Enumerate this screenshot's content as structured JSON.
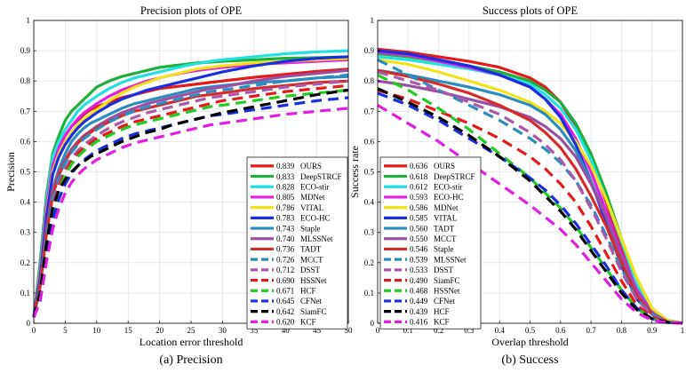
{
  "chart_data": [
    {
      "type": "line",
      "title": "Precision plots of OPE",
      "xlabel": "Location error threshold",
      "ylabel": "Precision",
      "caption": "(a) Precision",
      "xlim": [
        0,
        50
      ],
      "ylim": [
        0,
        1
      ],
      "xticks": [
        "0",
        "5",
        "10",
        "15",
        "20",
        "25",
        "30",
        "35",
        "40",
        "45",
        "50"
      ],
      "yticks": [
        "0",
        "0.1",
        "0.2",
        "0.3",
        "0.4",
        "0.5",
        "0.6",
        "0.7",
        "0.8",
        "0.9",
        "1"
      ],
      "legend_position": "bottom-right",
      "x": [
        0,
        1,
        2,
        3,
        4,
        5,
        6,
        7,
        8,
        9,
        10,
        12,
        14,
        16,
        18,
        20,
        22,
        24,
        26,
        28,
        30,
        35,
        40,
        45,
        50
      ],
      "series": [
        {
          "name": "OURS",
          "score": "0.839",
          "color": "#e41a1c",
          "dash": false,
          "values": [
            0.02,
            0.15,
            0.35,
            0.5,
            0.58,
            0.62,
            0.65,
            0.67,
            0.69,
            0.705,
            0.715,
            0.73,
            0.745,
            0.755,
            0.765,
            0.775,
            0.78,
            0.785,
            0.79,
            0.795,
            0.8,
            0.812,
            0.822,
            0.832,
            0.839
          ]
        },
        {
          "name": "DeepSTRCF",
          "score": "0.833",
          "color": "#1fae3a",
          "dash": false,
          "values": [
            0.02,
            0.2,
            0.42,
            0.56,
            0.62,
            0.67,
            0.7,
            0.72,
            0.74,
            0.76,
            0.78,
            0.8,
            0.815,
            0.825,
            0.835,
            0.845,
            0.85,
            0.855,
            0.86,
            0.862,
            0.865,
            0.87,
            0.875,
            0.877,
            0.88
          ]
        },
        {
          "name": "ECO-stir",
          "score": "0.828",
          "color": "#22e0e0",
          "dash": false,
          "values": [
            0.02,
            0.18,
            0.4,
            0.55,
            0.6,
            0.64,
            0.67,
            0.7,
            0.72,
            0.735,
            0.75,
            0.775,
            0.795,
            0.81,
            0.82,
            0.83,
            0.84,
            0.85,
            0.858,
            0.865,
            0.87,
            0.88,
            0.89,
            0.896,
            0.9
          ]
        },
        {
          "name": "MDNet",
          "score": "0.805",
          "color": "#e01ee0",
          "dash": false,
          "values": [
            0.02,
            0.17,
            0.38,
            0.52,
            0.58,
            0.62,
            0.65,
            0.675,
            0.695,
            0.71,
            0.725,
            0.75,
            0.77,
            0.785,
            0.8,
            0.81,
            0.82,
            0.828,
            0.835,
            0.84,
            0.845,
            0.855,
            0.86,
            0.865,
            0.87
          ]
        },
        {
          "name": "VITAL",
          "score": "0.786",
          "color": "#f2e21a",
          "dash": false,
          "values": [
            0.02,
            0.16,
            0.36,
            0.5,
            0.56,
            0.6,
            0.63,
            0.655,
            0.675,
            0.69,
            0.705,
            0.735,
            0.76,
            0.78,
            0.795,
            0.81,
            0.82,
            0.83,
            0.84,
            0.845,
            0.85,
            0.86,
            0.865,
            0.87,
            0.875
          ]
        },
        {
          "name": "ECO-HC",
          "score": "0.783",
          "color": "#1a2ee0",
          "dash": false,
          "values": [
            0.02,
            0.15,
            0.35,
            0.49,
            0.55,
            0.59,
            0.62,
            0.645,
            0.665,
            0.68,
            0.695,
            0.72,
            0.74,
            0.755,
            0.77,
            0.78,
            0.79,
            0.8,
            0.81,
            0.82,
            0.83,
            0.85,
            0.865,
            0.875,
            0.88
          ]
        },
        {
          "name": "Staple",
          "score": "0.743",
          "color": "#2b8cbe",
          "dash": false,
          "values": [
            0.02,
            0.12,
            0.3,
            0.44,
            0.51,
            0.56,
            0.6,
            0.625,
            0.645,
            0.66,
            0.67,
            0.69,
            0.71,
            0.725,
            0.735,
            0.745,
            0.755,
            0.765,
            0.775,
            0.78,
            0.785,
            0.795,
            0.8,
            0.81,
            0.815
          ]
        },
        {
          "name": "MLSSNet",
          "score": "0.740",
          "color": "#9a4fa3",
          "dash": false,
          "values": [
            0.02,
            0.13,
            0.31,
            0.44,
            0.5,
            0.54,
            0.575,
            0.6,
            0.62,
            0.635,
            0.65,
            0.675,
            0.695,
            0.71,
            0.725,
            0.735,
            0.745,
            0.755,
            0.765,
            0.775,
            0.78,
            0.8,
            0.815,
            0.825,
            0.835
          ]
        },
        {
          "name": "TADT",
          "score": "0.736",
          "color": "#d42b2b",
          "dash": false,
          "values": [
            0.02,
            0.12,
            0.29,
            0.42,
            0.49,
            0.535,
            0.57,
            0.595,
            0.615,
            0.63,
            0.645,
            0.665,
            0.685,
            0.7,
            0.71,
            0.72,
            0.73,
            0.74,
            0.75,
            0.755,
            0.76,
            0.775,
            0.785,
            0.795,
            0.8
          ]
        },
        {
          "name": "MCCT",
          "score": "0.726",
          "color": "#2b8cbe",
          "dash": true,
          "values": [
            0.02,
            0.11,
            0.28,
            0.41,
            0.48,
            0.53,
            0.565,
            0.59,
            0.61,
            0.625,
            0.64,
            0.665,
            0.685,
            0.7,
            0.715,
            0.725,
            0.735,
            0.745,
            0.755,
            0.765,
            0.77,
            0.785,
            0.8,
            0.81,
            0.82
          ]
        },
        {
          "name": "DSST",
          "score": "0.712",
          "color": "#a85aa8",
          "dash": true,
          "values": [
            0.02,
            0.1,
            0.26,
            0.39,
            0.46,
            0.51,
            0.545,
            0.57,
            0.59,
            0.605,
            0.62,
            0.645,
            0.665,
            0.68,
            0.695,
            0.705,
            0.715,
            0.725,
            0.735,
            0.745,
            0.75,
            0.765,
            0.78,
            0.79,
            0.8
          ]
        },
        {
          "name": "HSSNet",
          "score": "0.690",
          "color": "#e41a1c",
          "dash": true,
          "values": [
            0.02,
            0.09,
            0.25,
            0.38,
            0.45,
            0.5,
            0.535,
            0.56,
            0.58,
            0.595,
            0.61,
            0.63,
            0.65,
            0.665,
            0.675,
            0.685,
            0.695,
            0.705,
            0.715,
            0.725,
            0.735,
            0.75,
            0.765,
            0.775,
            0.785
          ]
        },
        {
          "name": "HCF",
          "score": "0.671",
          "color": "#22cc22",
          "dash": true,
          "values": [
            0.02,
            0.09,
            0.24,
            0.37,
            0.44,
            0.49,
            0.525,
            0.55,
            0.57,
            0.585,
            0.6,
            0.62,
            0.64,
            0.655,
            0.665,
            0.675,
            0.685,
            0.695,
            0.705,
            0.715,
            0.72,
            0.735,
            0.75,
            0.76,
            0.77
          ]
        },
        {
          "name": "CFNet",
          "score": "0.645",
          "color": "#1a2ee0",
          "dash": true,
          "values": [
            0.02,
            0.08,
            0.22,
            0.34,
            0.41,
            0.46,
            0.495,
            0.52,
            0.54,
            0.555,
            0.57,
            0.59,
            0.61,
            0.625,
            0.635,
            0.645,
            0.655,
            0.665,
            0.675,
            0.685,
            0.69,
            0.705,
            0.72,
            0.735,
            0.745
          ]
        },
        {
          "name": "SiamFC",
          "score": "0.642",
          "color": "#000000",
          "dash": true,
          "values": [
            0.02,
            0.1,
            0.26,
            0.38,
            0.44,
            0.475,
            0.5,
            0.52,
            0.535,
            0.55,
            0.56,
            0.58,
            0.6,
            0.615,
            0.63,
            0.64,
            0.655,
            0.665,
            0.675,
            0.685,
            0.695,
            0.715,
            0.735,
            0.755,
            0.77
          ]
        },
        {
          "name": "KCF",
          "score": "0.620",
          "color": "#e01ee0",
          "dash": true,
          "values": [
            0.02,
            0.07,
            0.2,
            0.31,
            0.38,
            0.43,
            0.465,
            0.49,
            0.51,
            0.525,
            0.54,
            0.56,
            0.58,
            0.595,
            0.605,
            0.615,
            0.625,
            0.635,
            0.645,
            0.655,
            0.66,
            0.675,
            0.69,
            0.7,
            0.71
          ]
        }
      ]
    },
    {
      "type": "line",
      "title": "Success plots of OPE",
      "xlabel": "Overlap threshold",
      "ylabel": "Success rate",
      "caption": "(b) Success",
      "xlim": [
        0,
        1
      ],
      "ylim": [
        0,
        1
      ],
      "xticks": [
        "0",
        "0.1",
        "0.2",
        "0.3",
        "0.4",
        "0.5",
        "0.6",
        "0.7",
        "0.8",
        "0.9",
        "1"
      ],
      "yticks": [
        "0",
        "0.1",
        "0.2",
        "0.3",
        "0.4",
        "0.5",
        "0.6",
        "0.7",
        "0.8",
        "0.9",
        "1"
      ],
      "legend_position": "bottom-left",
      "x": [
        0,
        0.1,
        0.2,
        0.3,
        0.4,
        0.5,
        0.55,
        0.6,
        0.65,
        0.7,
        0.75,
        0.8,
        0.85,
        0.9,
        0.95,
        1.0
      ],
      "series": [
        {
          "name": "OURS",
          "score": "0.636",
          "color": "#e41a1c",
          "dash": false,
          "values": [
            0.905,
            0.895,
            0.88,
            0.865,
            0.845,
            0.81,
            0.78,
            0.73,
            0.65,
            0.54,
            0.4,
            0.25,
            0.12,
            0.04,
            0.01,
            0.0
          ]
        },
        {
          "name": "DeepSTRCF",
          "score": "0.618",
          "color": "#1fae3a",
          "dash": false,
          "values": [
            0.89,
            0.88,
            0.865,
            0.85,
            0.83,
            0.8,
            0.77,
            0.73,
            0.66,
            0.56,
            0.43,
            0.28,
            0.14,
            0.05,
            0.01,
            0.0
          ]
        },
        {
          "name": "ECO-stir",
          "score": "0.612",
          "color": "#22e0e0",
          "dash": false,
          "values": [
            0.88,
            0.87,
            0.855,
            0.84,
            0.82,
            0.79,
            0.755,
            0.71,
            0.64,
            0.54,
            0.41,
            0.27,
            0.13,
            0.045,
            0.01,
            0.0
          ]
        },
        {
          "name": "ECO-HC",
          "score": "0.593",
          "color": "#e01ee0",
          "dash": false,
          "values": [
            0.895,
            0.885,
            0.865,
            0.845,
            0.82,
            0.78,
            0.74,
            0.69,
            0.61,
            0.5,
            0.37,
            0.23,
            0.11,
            0.04,
            0.01,
            0.0
          ]
        },
        {
          "name": "MDNet",
          "score": "0.586",
          "color": "#f2e21a",
          "dash": false,
          "values": [
            0.87,
            0.855,
            0.83,
            0.8,
            0.77,
            0.73,
            0.7,
            0.66,
            0.6,
            0.52,
            0.41,
            0.28,
            0.15,
            0.05,
            0.01,
            0.0
          ]
        },
        {
          "name": "VITAL",
          "score": "0.585",
          "color": "#1a2ee0",
          "dash": false,
          "values": [
            0.9,
            0.89,
            0.87,
            0.85,
            0.82,
            0.78,
            0.74,
            0.68,
            0.59,
            0.47,
            0.33,
            0.19,
            0.08,
            0.03,
            0.005,
            0.0
          ]
        },
        {
          "name": "TADT",
          "score": "0.560",
          "color": "#2b8cbe",
          "dash": false,
          "values": [
            0.835,
            0.82,
            0.8,
            0.78,
            0.755,
            0.72,
            0.69,
            0.64,
            0.57,
            0.47,
            0.35,
            0.22,
            0.1,
            0.035,
            0.005,
            0.0
          ]
        },
        {
          "name": "MCCT",
          "score": "0.550",
          "color": "#9a4fa3",
          "dash": false,
          "values": [
            0.8,
            0.785,
            0.765,
            0.74,
            0.715,
            0.68,
            0.65,
            0.61,
            0.55,
            0.46,
            0.35,
            0.22,
            0.1,
            0.035,
            0.005,
            0.0
          ]
        },
        {
          "name": "Staple",
          "score": "0.546",
          "color": "#d42b2b",
          "dash": false,
          "values": [
            0.835,
            0.815,
            0.79,
            0.76,
            0.72,
            0.67,
            0.63,
            0.58,
            0.51,
            0.42,
            0.32,
            0.2,
            0.09,
            0.03,
            0.005,
            0.0
          ]
        },
        {
          "name": "MLSSNet",
          "score": "0.539",
          "color": "#2b8cbe",
          "dash": true,
          "values": [
            0.87,
            0.82,
            0.77,
            0.72,
            0.67,
            0.61,
            0.575,
            0.53,
            0.47,
            0.39,
            0.29,
            0.18,
            0.08,
            0.03,
            0.005,
            0.0
          ]
        },
        {
          "name": "DSST",
          "score": "0.533",
          "color": "#a85aa8",
          "dash": true,
          "values": [
            0.83,
            0.8,
            0.77,
            0.73,
            0.69,
            0.63,
            0.59,
            0.54,
            0.47,
            0.38,
            0.28,
            0.17,
            0.08,
            0.025,
            0.005,
            0.0
          ]
        },
        {
          "name": "SiamFC",
          "score": "0.490",
          "color": "#e41a1c",
          "dash": true,
          "values": [
            0.77,
            0.74,
            0.7,
            0.66,
            0.61,
            0.55,
            0.51,
            0.46,
            0.4,
            0.32,
            0.23,
            0.14,
            0.06,
            0.02,
            0.003,
            0.0
          ]
        },
        {
          "name": "HSSNet",
          "score": "0.468",
          "color": "#22cc22",
          "dash": true,
          "values": [
            0.82,
            0.77,
            0.71,
            0.64,
            0.56,
            0.48,
            0.43,
            0.38,
            0.32,
            0.25,
            0.18,
            0.11,
            0.05,
            0.015,
            0.003,
            0.0
          ]
        },
        {
          "name": "CFNet",
          "score": "0.449",
          "color": "#1a2ee0",
          "dash": true,
          "values": [
            0.76,
            0.72,
            0.67,
            0.61,
            0.55,
            0.48,
            0.44,
            0.39,
            0.33,
            0.26,
            0.19,
            0.11,
            0.05,
            0.015,
            0.003,
            0.0
          ]
        },
        {
          "name": "HCF",
          "score": "0.439",
          "color": "#000000",
          "dash": true,
          "values": [
            0.775,
            0.73,
            0.68,
            0.62,
            0.55,
            0.47,
            0.42,
            0.37,
            0.31,
            0.24,
            0.17,
            0.1,
            0.045,
            0.015,
            0.003,
            0.0
          ]
        },
        {
          "name": "KCF",
          "score": "0.416",
          "color": "#e01ee0",
          "dash": true,
          "values": [
            0.72,
            0.66,
            0.6,
            0.53,
            0.46,
            0.39,
            0.35,
            0.31,
            0.26,
            0.2,
            0.14,
            0.08,
            0.035,
            0.01,
            0.002,
            0.0
          ]
        }
      ]
    }
  ]
}
